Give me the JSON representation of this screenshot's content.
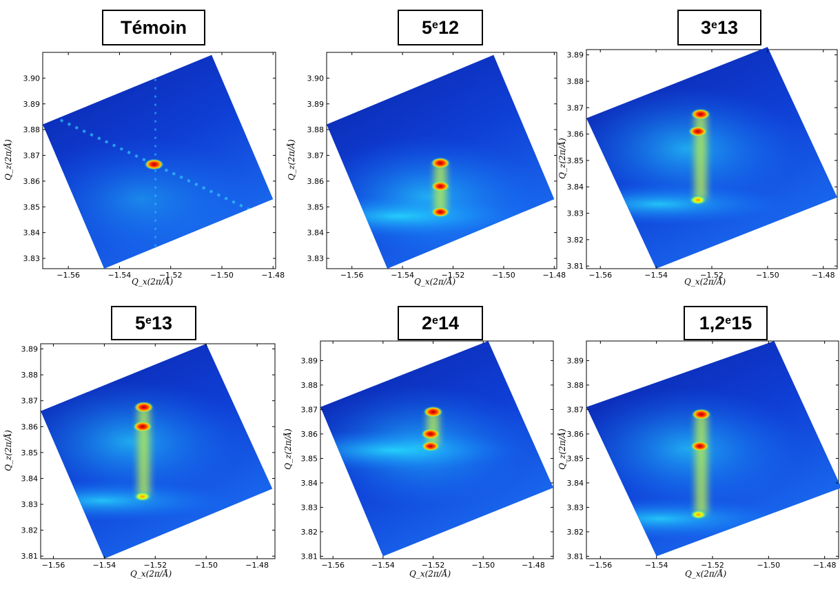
{
  "chart_data": [
    {
      "type": "heatmap",
      "title": "Témoin",
      "title_base": "Témoin",
      "title_sup": "",
      "title_tail": "",
      "xlabel": "Q_x(2π/Å)",
      "ylabel": "Q_z(2π/Å)",
      "xlim": [
        -1.57,
        -1.479
      ],
      "ylim": [
        3.826,
        3.91
      ],
      "xticks": [
        "−1.56",
        "−1.54",
        "−1.52",
        "−1.50",
        "−1.48"
      ],
      "xtick_values": [
        -1.56,
        -1.54,
        -1.52,
        -1.5,
        -1.48
      ],
      "yticks": [
        "3.83",
        "3.84",
        "3.85",
        "3.86",
        "3.87",
        "3.88",
        "3.89",
        "3.90"
      ],
      "ytick_values": [
        3.83,
        3.84,
        3.85,
        3.86,
        3.87,
        3.88,
        3.89,
        3.9
      ],
      "grid": false,
      "colormap": "jet",
      "data_region": [
        [
          -1.57,
          3.882
        ],
        [
          -1.504,
          3.909
        ],
        [
          -1.48,
          3.853
        ],
        [
          -1.546,
          3.826
        ]
      ],
      "peaks": [
        {
          "x": -1.5265,
          "y": 3.8665,
          "intensity": 1.0
        }
      ]
    },
    {
      "type": "heatmap",
      "title": "5e12",
      "title_base": "5",
      "title_sup": "e",
      "title_tail": "12",
      "xlabel": "Q_x(2π/Å)",
      "ylabel": "Q_z(2π/Å)",
      "xlim": [
        -1.57,
        -1.479
      ],
      "ylim": [
        3.826,
        3.91
      ],
      "xticks": [
        "−1.56",
        "−1.54",
        "−1.52",
        "−1.50",
        "−1.48"
      ],
      "xtick_values": [
        -1.56,
        -1.54,
        -1.52,
        -1.5,
        -1.48
      ],
      "yticks": [
        "3.83",
        "3.84",
        "3.85",
        "3.86",
        "3.87",
        "3.88",
        "3.89",
        "3.90"
      ],
      "ytick_values": [
        3.83,
        3.84,
        3.85,
        3.86,
        3.87,
        3.88,
        3.89,
        3.9
      ],
      "grid": false,
      "colormap": "jet",
      "data_region": [
        [
          -1.57,
          3.882
        ],
        [
          -1.504,
          3.909
        ],
        [
          -1.48,
          3.853
        ],
        [
          -1.546,
          3.826
        ]
      ],
      "peaks": [
        {
          "x": -1.525,
          "y": 3.867,
          "intensity": 1.0
        },
        {
          "x": -1.525,
          "y": 3.858,
          "intensity": 0.85
        },
        {
          "x": -1.525,
          "y": 3.848,
          "intensity": 0.8
        }
      ]
    },
    {
      "type": "heatmap",
      "title": "3e13",
      "title_base": "3",
      "title_sup": "e",
      "title_tail": "13",
      "xlabel": "Q_x(2π/Å)",
      "ylabel": "Q_z(2π/Å)",
      "xlim": [
        -1.565,
        -1.475
      ],
      "ylim": [
        3.809,
        3.892
      ],
      "xticks": [
        "−1.56",
        "−1.54",
        "−1.52",
        "−1.50",
        "−1.48"
      ],
      "xtick_values": [
        -1.56,
        -1.54,
        -1.52,
        -1.5,
        -1.48
      ],
      "yticks": [
        "3.81",
        "3.82",
        "3.83",
        "3.84",
        "3.85",
        "3.86",
        "3.87",
        "3.88",
        "3.89"
      ],
      "ytick_values": [
        3.81,
        3.82,
        3.83,
        3.84,
        3.85,
        3.86,
        3.87,
        3.88,
        3.89
      ],
      "grid": false,
      "colormap": "jet",
      "data_region": [
        [
          -1.565,
          3.866
        ],
        [
          -1.5,
          3.893
        ],
        [
          -1.475,
          3.836
        ],
        [
          -1.54,
          3.809
        ]
      ],
      "peaks": [
        {
          "x": -1.524,
          "y": 3.8675,
          "intensity": 1.0
        },
        {
          "x": -1.525,
          "y": 3.861,
          "intensity": 0.9
        },
        {
          "x": -1.525,
          "y": 3.835,
          "intensity": 0.55
        }
      ]
    },
    {
      "type": "heatmap",
      "title": "5e13",
      "title_base": "5",
      "title_sup": "e",
      "title_tail": "13",
      "xlabel": "Q_x(2π/Å)",
      "ylabel": "Q_z(2π/Å)",
      "xlim": [
        -1.565,
        -1.473
      ],
      "ylim": [
        3.809,
        3.892
      ],
      "xticks": [
        "−1.56",
        "−1.54",
        "−1.52",
        "−1.50",
        "−1.48"
      ],
      "xtick_values": [
        -1.56,
        -1.54,
        -1.52,
        -1.5,
        -1.48
      ],
      "yticks": [
        "3.81",
        "3.82",
        "3.83",
        "3.84",
        "3.85",
        "3.86",
        "3.87",
        "3.88",
        "3.89"
      ],
      "ytick_values": [
        3.81,
        3.82,
        3.83,
        3.84,
        3.85,
        3.86,
        3.87,
        3.88,
        3.89
      ],
      "grid": false,
      "colormap": "jet",
      "data_region": [
        [
          -1.565,
          3.866
        ],
        [
          -1.5,
          3.892
        ],
        [
          -1.474,
          3.836
        ],
        [
          -1.54,
          3.809
        ]
      ],
      "peaks": [
        {
          "x": -1.5245,
          "y": 3.8675,
          "intensity": 1.0
        },
        {
          "x": -1.525,
          "y": 3.86,
          "intensity": 0.95
        },
        {
          "x": -1.525,
          "y": 3.833,
          "intensity": 0.55
        }
      ]
    },
    {
      "type": "heatmap",
      "title": "2e14",
      "title_base": "2",
      "title_sup": "e",
      "title_tail": "14",
      "xlabel": "Q_x(2π/Å)",
      "ylabel": "Q_z(2π/Å)",
      "xlim": [
        -1.565,
        -1.472
      ],
      "ylim": [
        3.809,
        3.898
      ],
      "xticks": [
        "−1.56",
        "−1.54",
        "−1.52",
        "−1.50",
        "−1.48"
      ],
      "xtick_values": [
        -1.56,
        -1.54,
        -1.52,
        -1.5,
        -1.48
      ],
      "yticks": [
        "3.81",
        "3.82",
        "3.83",
        "3.84",
        "3.85",
        "3.86",
        "3.87",
        "3.88",
        "3.89"
      ],
      "ytick_values": [
        3.81,
        3.82,
        3.83,
        3.84,
        3.85,
        3.86,
        3.87,
        3.88,
        3.89
      ],
      "grid": false,
      "colormap": "jet",
      "data_region": [
        [
          -1.565,
          3.871
        ],
        [
          -1.498,
          3.898
        ],
        [
          -1.472,
          3.838
        ],
        [
          -1.54,
          3.81
        ]
      ],
      "peaks": [
        {
          "x": -1.52,
          "y": 3.869,
          "intensity": 1.0
        },
        {
          "x": -1.521,
          "y": 3.86,
          "intensity": 0.9
        },
        {
          "x": -1.521,
          "y": 3.855,
          "intensity": 0.75
        }
      ]
    },
    {
      "type": "heatmap",
      "title": "1,2e15",
      "title_base": "1,2",
      "title_sup": "e",
      "title_tail": "15",
      "xlabel": "Q_x(2π/Å)",
      "ylabel": "Q_z(2π/Å)",
      "xlim": [
        -1.565,
        -1.475
      ],
      "ylim": [
        3.809,
        3.898
      ],
      "xticks": [
        "−1.56",
        "−1.54",
        "−1.52",
        "−1.50",
        "−1.48"
      ],
      "xtick_values": [
        -1.56,
        -1.54,
        -1.52,
        -1.5,
        -1.48
      ],
      "yticks": [
        "3.81",
        "3.82",
        "3.83",
        "3.84",
        "3.85",
        "3.86",
        "3.87",
        "3.88",
        "3.89"
      ],
      "ytick_values": [
        3.81,
        3.82,
        3.83,
        3.84,
        3.85,
        3.86,
        3.87,
        3.88,
        3.89
      ],
      "grid": false,
      "colormap": "jet",
      "data_region": [
        [
          -1.565,
          3.871
        ],
        [
          -1.498,
          3.898
        ],
        [
          -1.474,
          3.838
        ],
        [
          -1.54,
          3.81
        ]
      ],
      "peaks": [
        {
          "x": -1.524,
          "y": 3.868,
          "intensity": 1.0
        },
        {
          "x": -1.5245,
          "y": 3.855,
          "intensity": 0.85
        },
        {
          "x": -1.525,
          "y": 3.827,
          "intensity": 0.45
        }
      ]
    }
  ]
}
